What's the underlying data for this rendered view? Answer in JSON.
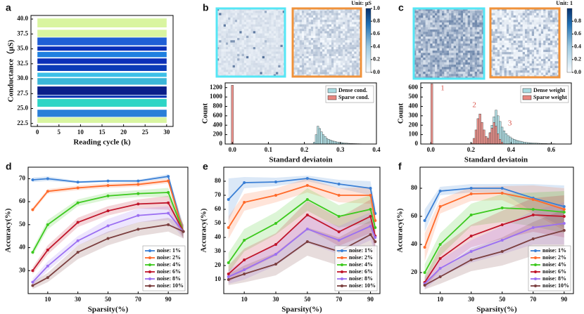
{
  "chart_data": [
    {
      "type": "band",
      "panel_label": "a",
      "xlabel": "Reading cycle (k)",
      "ylabel": "Conductance（μS)",
      "x": [
        0,
        30
      ],
      "xlim": [
        -1.5,
        31.5
      ],
      "ylim": [
        22,
        40.6
      ],
      "xticks": [
        0,
        5,
        10,
        15,
        20,
        25,
        30
      ],
      "yticks": [
        22.5,
        {
          "value": 25,
          "label": "25.0"
        },
        27.5,
        {
          "value": 30,
          "label": "30.0"
        },
        32.5,
        {
          "value": 35,
          "label": "35.0"
        },
        37.5,
        {
          "value": 40,
          "label": "40.0"
        }
      ],
      "series": [
        {
          "color": "#d9f5a0",
          "values": [
            38.6,
            40.1
          ]
        },
        {
          "color": "#d9f5a0",
          "values": [
            37.0,
            38.2
          ]
        },
        {
          "color": "#1f5fd6",
          "values": [
            35.6,
            36.9
          ]
        },
        {
          "color": "#0b2fb8",
          "values": [
            34.7,
            35.4
          ]
        },
        {
          "color": "#1e7fe0",
          "values": [
            33.6,
            34.5
          ]
        },
        {
          "color": "#0b2fb8",
          "values": [
            32.5,
            33.4
          ]
        },
        {
          "color": "#0b3ab8",
          "values": [
            31.3,
            32.3
          ]
        },
        {
          "color": "#3dc0e8",
          "values": [
            30.3,
            31.0
          ]
        },
        {
          "color": "#3ab6d8",
          "values": [
            29.0,
            30.1
          ]
        },
        {
          "color": "#0a1f8a",
          "values": [
            27.3,
            28.7
          ]
        },
        {
          "color": "#0b3ab8",
          "values": [
            26.8,
            27.2
          ]
        },
        {
          "color": "#2ed5c5",
          "values": [
            25.3,
            26.6
          ]
        },
        {
          "color": "#2a7fd8",
          "values": [
            23.6,
            24.8
          ]
        },
        {
          "color": "#d9f5a0",
          "values": [
            22.6,
            23.5
          ]
        }
      ]
    },
    {
      "type": "histogram",
      "panel_label": "b",
      "xlabel": "Standard deviatoin",
      "ylabel": "Count",
      "legend": "upper right",
      "colorbar": {
        "title": "Unit: μS",
        "ticks": [
          {
            "value": 0,
            "label": "0.0"
          },
          0.2,
          0.4,
          0.6,
          0.8,
          {
            "value": 1,
            "label": "1.0"
          }
        ]
      },
      "xlim": [
        -0.02,
        0.4
      ],
      "ylim": [
        0,
        1300
      ],
      "xticks": [
        {
          "value": 0,
          "label": "0.0"
        },
        0.1,
        0.2,
        0.3,
        0.4
      ],
      "yticks": [
        0,
        200,
        400,
        600,
        800,
        1000,
        1200
      ],
      "series": [
        {
          "name": "Dense cond.",
          "color": "#a9dce2",
          "bins": [
            0.22,
            0.225,
            0.23,
            0.235,
            0.24,
            0.245,
            0.25,
            0.255,
            0.26,
            0.265,
            0.27,
            0.275,
            0.28,
            0.285,
            0.29,
            0.295,
            0.3,
            0.305,
            0.31,
            0.315,
            0.32,
            0.325,
            0.33,
            0.335,
            0.34,
            0.345,
            0.35,
            0.355,
            0.36,
            0.365,
            0.37,
            0.375,
            0.38
          ],
          "values": [
            5,
            40,
            200,
            380,
            330,
            260,
            200,
            160,
            120,
            100,
            85,
            70,
            60,
            50,
            42,
            35,
            30,
            25,
            20,
            18,
            15,
            12,
            10,
            9,
            8,
            7,
            6,
            5,
            4,
            3,
            3,
            2
          ]
        },
        {
          "name": "Sparse cond.",
          "color": "#e8867f",
          "bins": [
            -0.003,
            0.003
          ],
          "values": [
            1250
          ]
        }
      ]
    },
    {
      "type": "histogram",
      "panel_label": "c",
      "xlabel": "Standard deviatoin",
      "ylabel": "Count",
      "legend": "upper right",
      "annotations": [
        "1",
        "2",
        "3"
      ],
      "colorbar": {
        "title": "Unit: 1",
        "ticks": [
          {
            "value": 0,
            "label": "0.0"
          },
          0.2,
          0.4,
          0.6,
          0.8
        ]
      },
      "xlim": [
        -0.05,
        0.7
      ],
      "ylim": [
        0,
        650
      ],
      "xticks": [
        {
          "value": 0,
          "label": "0.0"
        },
        0.2,
        0.4,
        0.6
      ],
      "yticks": [
        0,
        100,
        200,
        300,
        400,
        500,
        600
      ],
      "series": [
        {
          "name": "Dense weight",
          "color": "#a9dce2",
          "bins": [
            0.26,
            0.27,
            0.28,
            0.29,
            0.3,
            0.31,
            0.32,
            0.33,
            0.34,
            0.35,
            0.36,
            0.37,
            0.38,
            0.39,
            0.4,
            0.41,
            0.42,
            0.43,
            0.44,
            0.45,
            0.46,
            0.47,
            0.48,
            0.49,
            0.5,
            0.51,
            0.52,
            0.53,
            0.54,
            0.55,
            0.56,
            0.57,
            0.58,
            0.59,
            0.6,
            0.61,
            0.62,
            0.63,
            0.64,
            0.65,
            0.66
          ],
          "values": [
            5,
            20,
            60,
            120,
            200,
            290,
            360,
            300,
            240,
            180,
            140,
            110,
            90,
            75,
            60,
            50,
            42,
            35,
            30,
            25,
            20,
            17,
            15,
            13,
            11,
            10,
            9,
            8,
            7,
            6,
            5,
            5,
            4,
            4,
            3,
            3,
            2,
            2,
            2,
            1
          ]
        },
        {
          "name": "Sparse weight",
          "color": "#e8867f",
          "bins": [
            0,
            0.01,
            0.02,
            0.03,
            0.04,
            0.05,
            0.06,
            0.07,
            0.08,
            0.09,
            0.1,
            0.11,
            0.12,
            0.13,
            0.14,
            0.15,
            0.16,
            0.17,
            0.18,
            0.19,
            0.2,
            0.21,
            0.22,
            0.23,
            0.24,
            0.25,
            0.26,
            0.27,
            0.28,
            0.29,
            0.3,
            0.31,
            0.32,
            0.33,
            0.34,
            0.35,
            0.36
          ],
          "values": [
            640,
            0,
            0,
            0,
            0,
            0,
            0,
            0,
            0,
            0,
            0,
            0,
            0,
            0,
            0,
            0,
            0,
            0,
            0,
            0,
            10,
            60,
            150,
            270,
            320,
            230,
            150,
            80,
            60,
            120,
            170,
            230,
            190,
            110,
            50,
            20
          ]
        }
      ]
    },
    {
      "type": "line",
      "panel_label": "d",
      "xlabel": "Sparsity(%)",
      "ylabel": "Accuracy(%)",
      "legend": "lower right",
      "x": [
        0,
        10,
        30,
        50,
        70,
        90,
        100
      ],
      "xlim": [
        -3,
        103
      ],
      "ylim": [
        20,
        75
      ],
      "xticks": [
        10,
        30,
        50,
        70,
        90
      ],
      "yticks": [
        30,
        40,
        50,
        60,
        70
      ],
      "series": [
        {
          "name": "noise: 1%",
          "color": "#3a7fd5",
          "values": [
            69.5,
            70,
            68.5,
            69,
            69,
            71,
            47
          ],
          "errors": [
            1,
            1,
            0.5,
            0.5,
            0.5,
            1,
            3
          ]
        },
        {
          "name": "noise: 2%",
          "color": "#ff6a2a",
          "values": [
            56.5,
            64.5,
            66,
            67,
            67.5,
            69,
            47
          ],
          "errors": [
            1,
            1,
            1,
            1,
            1,
            1,
            3
          ]
        },
        {
          "name": "noise: 4%",
          "color": "#3cc91e",
          "values": [
            38,
            50,
            59.5,
            62.5,
            63.5,
            64,
            47
          ],
          "errors": [
            1.5,
            2,
            1.5,
            1.5,
            1.5,
            2,
            3
          ]
        },
        {
          "name": "noise: 6%",
          "color": "#c0152a",
          "values": [
            30,
            39,
            51,
            56,
            59,
            59.5,
            47
          ],
          "errors": [
            1.5,
            2,
            2,
            2,
            2,
            3,
            3
          ]
        },
        {
          "name": "noise: 8%",
          "color": "#9b6ff2",
          "values": [
            25,
            32,
            43,
            49.5,
            54,
            55,
            47
          ],
          "errors": [
            1.5,
            2,
            2,
            3,
            3,
            3,
            3
          ]
        },
        {
          "name": "noise: 10%",
          "color": "#7b3f3f",
          "values": [
            23.5,
            27,
            38,
            44,
            48,
            50,
            47
          ],
          "errors": [
            1.5,
            2,
            3,
            3,
            3,
            3,
            3
          ]
        }
      ]
    },
    {
      "type": "line",
      "panel_label": "e",
      "xlabel": "Sparsity(%)",
      "ylabel": "Accuracy(%)",
      "legend": "lower right",
      "x": [
        0,
        10,
        30,
        50,
        70,
        90,
        93
      ],
      "xlim": [
        -3,
        96
      ],
      "ylim": [
        0,
        90
      ],
      "xticks": [
        10,
        30,
        50,
        70,
        90
      ],
      "yticks": [
        10,
        20,
        30,
        40,
        50,
        60,
        70,
        80
      ],
      "series": [
        {
          "name": "noise: 1%",
          "color": "#3a7fd5",
          "values": [
            67,
            79,
            79.5,
            82,
            78,
            75,
            57
          ],
          "errors": [
            15,
            4,
            3,
            2,
            3,
            5,
            5
          ]
        },
        {
          "name": "noise: 2%",
          "color": "#ff6a2a",
          "values": [
            47,
            65,
            70,
            77,
            70,
            70,
            52
          ],
          "errors": [
            8,
            6,
            5,
            5,
            5,
            6,
            8
          ]
        },
        {
          "name": "noise: 4%",
          "color": "#3cc91e",
          "values": [
            22,
            38,
            50,
            67,
            55,
            60,
            47
          ],
          "errors": [
            7,
            8,
            8,
            8,
            8,
            10,
            10
          ]
        },
        {
          "name": "noise: 6%",
          "color": "#c0152a",
          "values": [
            14,
            24,
            35,
            56,
            44,
            55,
            41
          ],
          "errors": [
            6,
            8,
            8,
            10,
            10,
            12,
            10
          ]
        },
        {
          "name": "noise: 8%",
          "color": "#9b6ff2",
          "values": [
            12,
            17,
            28,
            46,
            38,
            48,
            40
          ],
          "errors": [
            5,
            7,
            8,
            10,
            10,
            10,
            10
          ]
        },
        {
          "name": "noise: 10%",
          "color": "#7b3f3f",
          "values": [
            10,
            14,
            21,
            37,
            30,
            42,
            37
          ],
          "errors": [
            4,
            6,
            8,
            10,
            10,
            10,
            10
          ]
        }
      ]
    },
    {
      "type": "line",
      "panel_label": "f",
      "xlabel": "Sparsity(%)",
      "ylabel": "Accuracy(%)",
      "legend": "lower right",
      "x": [
        0,
        10,
        30,
        50,
        70,
        90
      ],
      "xlim": [
        -3,
        96
      ],
      "ylim": [
        5,
        95
      ],
      "xticks": [
        10,
        30,
        50,
        70,
        90
      ],
      "yticks": [
        20,
        40,
        60,
        80
      ],
      "series": [
        {
          "name": "noise: 1%",
          "color": "#3a7fd5",
          "values": [
            57,
            78,
            80,
            80,
            73,
            67
          ],
          "errors": [
            8,
            3,
            3,
            3,
            10,
            15
          ]
        },
        {
          "name": "noise: 2%",
          "color": "#ff6a2a",
          "values": [
            38,
            67,
            76,
            76.5,
            72,
            65
          ],
          "errors": [
            10,
            5,
            5,
            5,
            10,
            15
          ]
        },
        {
          "name": "noise: 4%",
          "color": "#3cc91e",
          "values": [
            20,
            40,
            61,
            66,
            65,
            63
          ],
          "errors": [
            6,
            8,
            8,
            10,
            12,
            15
          ]
        },
        {
          "name": "noise: 6%",
          "color": "#c0152a",
          "values": [
            13,
            30,
            46,
            54,
            61,
            60
          ],
          "errors": [
            4,
            8,
            8,
            10,
            12,
            15
          ]
        },
        {
          "name": "noise: 8%",
          "color": "#9b6ff2",
          "values": [
            12,
            23,
            35,
            43,
            52,
            55
          ],
          "errors": [
            4,
            6,
            8,
            10,
            12,
            15
          ]
        },
        {
          "name": "noise: 10%",
          "color": "#7b3f3f",
          "values": [
            11,
            17,
            29,
            35,
            44,
            50
          ],
          "errors": [
            3,
            5,
            8,
            10,
            12,
            15
          ]
        }
      ]
    }
  ]
}
